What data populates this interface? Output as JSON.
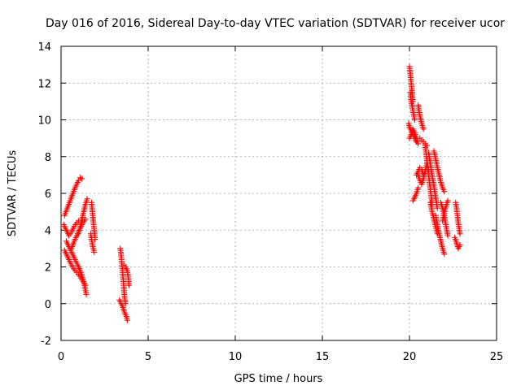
{
  "chart_data": {
    "type": "scatter",
    "title": "Day 016 of 2016, Sidereal Day-to-day VTEC variation (SDTVAR) for receiver ucor",
    "xlabel": "GPS time / hours",
    "ylabel": "SDTVAR / TECUs",
    "xlim": [
      0,
      25
    ],
    "ylim": [
      -2,
      14
    ],
    "xticks": [
      0,
      5,
      10,
      15,
      20,
      25
    ],
    "yticks": [
      -2,
      0,
      2,
      4,
      6,
      8,
      10,
      12,
      14
    ],
    "xtick_labels": [
      "0",
      "5",
      "10",
      "15",
      "20",
      "25"
    ],
    "ytick_labels": [
      "-2",
      "0",
      "2",
      "4",
      "6",
      "8",
      "10",
      "12",
      "14"
    ],
    "grid": true,
    "marker": "+",
    "marker_color": "#ff0000",
    "series": [
      {
        "name": "SDTVAR",
        "segments": [
          {
            "x": [
              0.2,
              0.4,
              0.6,
              0.8,
              1.0,
              1.1,
              1.2
            ],
            "y": [
              4.8,
              5.3,
              5.8,
              6.3,
              6.7,
              6.85,
              6.8
            ]
          },
          {
            "x": [
              0.15,
              0.3,
              0.45,
              0.6,
              0.75,
              0.9,
              1.0
            ],
            "y": [
              4.3,
              4.0,
              3.7,
              3.9,
              4.2,
              4.4,
              4.5
            ]
          },
          {
            "x": [
              0.2,
              0.4,
              0.6,
              0.8,
              1.0,
              1.2,
              1.4
            ],
            "y": [
              2.9,
              2.5,
              2.1,
              1.8,
              1.6,
              1.3,
              1.0
            ]
          },
          {
            "x": [
              0.3,
              0.5,
              0.7,
              0.9,
              1.1,
              1.3,
              1.45
            ],
            "y": [
              3.4,
              3.0,
              2.6,
              2.2,
              1.8,
              1.2,
              0.5
            ]
          },
          {
            "x": [
              0.6,
              0.8,
              1.0,
              1.2,
              1.4
            ],
            "y": [
              3.0,
              3.5,
              3.9,
              4.3,
              4.6
            ]
          },
          {
            "x": [
              1.0,
              1.1,
              1.2,
              1.3,
              1.4,
              1.5
            ],
            "y": [
              3.8,
              4.2,
              4.6,
              5.0,
              5.4,
              5.7
            ]
          },
          {
            "x": [
              1.75,
              1.8,
              1.85,
              1.9,
              1.95
            ],
            "y": [
              5.5,
              5.0,
              4.5,
              4.0,
              3.5
            ]
          },
          {
            "x": [
              1.7,
              1.8,
              1.9
            ],
            "y": [
              3.8,
              3.2,
              2.8
            ]
          },
          {
            "x": [
              3.4,
              3.45,
              3.5,
              3.55,
              3.6,
              3.65,
              3.7
            ],
            "y": [
              3.0,
              2.6,
              2.1,
              1.5,
              0.9,
              0.3,
              0.0
            ]
          },
          {
            "x": [
              3.35,
              3.45,
              3.55,
              3.65,
              3.75,
              3.8
            ],
            "y": [
              0.2,
              0.0,
              -0.2,
              -0.5,
              -0.7,
              -0.9
            ]
          },
          {
            "x": [
              3.6,
              3.7,
              3.8,
              3.85,
              3.9
            ],
            "y": [
              2.1,
              2.0,
              1.8,
              1.5,
              1.0
            ]
          },
          {
            "x": [
              20.0,
              20.05,
              20.1,
              20.15,
              20.2
            ],
            "y": [
              12.9,
              12.5,
              12.0,
              11.5,
              11.0
            ]
          },
          {
            "x": [
              20.05,
              20.1,
              20.2,
              20.3
            ],
            "y": [
              11.5,
              11.0,
              10.5,
              10.0
            ]
          },
          {
            "x": [
              19.95,
              20.0,
              20.1,
              20.2,
              20.3,
              20.4
            ],
            "y": [
              9.8,
              9.6,
              9.4,
              9.2,
              9.0,
              8.8
            ]
          },
          {
            "x": [
              20.0,
              20.1,
              20.2,
              20.3,
              20.4,
              20.5
            ],
            "y": [
              9.0,
              9.2,
              9.5,
              9.3,
              9.0,
              8.7
            ]
          },
          {
            "x": [
              20.5,
              20.55,
              20.6,
              20.7,
              20.8
            ],
            "y": [
              10.8,
              10.5,
              10.2,
              9.8,
              9.5
            ]
          },
          {
            "x": [
              20.6,
              20.7,
              20.8,
              20.9,
              21.0
            ],
            "y": [
              9.0,
              8.9,
              8.8,
              8.7,
              8.6
            ]
          },
          {
            "x": [
              20.4,
              20.5,
              20.6,
              20.7,
              20.8
            ],
            "y": [
              7.0,
              7.2,
              7.4,
              7.3,
              7.0
            ]
          },
          {
            "x": [
              20.5,
              20.6,
              20.7,
              20.8,
              20.9,
              21.0,
              21.1
            ],
            "y": [
              7.0,
              6.7,
              6.5,
              6.8,
              7.2,
              7.6,
              7.2
            ]
          },
          {
            "x": [
              20.2,
              20.3,
              20.4,
              20.5
            ],
            "y": [
              5.6,
              5.8,
              6.0,
              6.3
            ]
          },
          {
            "x": [
              20.9,
              21.0,
              21.1,
              21.2,
              21.3
            ],
            "y": [
              8.6,
              7.8,
              7.0,
              6.2,
              5.4
            ]
          },
          {
            "x": [
              21.1,
              21.2,
              21.3,
              21.4,
              21.5,
              21.6
            ],
            "y": [
              8.2,
              7.6,
              7.0,
              6.4,
              5.8,
              5.2
            ]
          },
          {
            "x": [
              21.4,
              21.5,
              21.6,
              21.7,
              21.8,
              21.9,
              22.0
            ],
            "y": [
              8.3,
              7.9,
              7.4,
              7.0,
              6.6,
              6.3,
              6.1
            ]
          },
          {
            "x": [
              21.2,
              21.3,
              21.4,
              21.5,
              21.6
            ],
            "y": [
              5.5,
              5.0,
              4.6,
              4.2,
              3.8
            ]
          },
          {
            "x": [
              21.5,
              21.6,
              21.7,
              21.8,
              21.9,
              22.0
            ],
            "y": [
              4.8,
              4.3,
              3.8,
              3.4,
              3.0,
              2.7
            ]
          },
          {
            "x": [
              21.8,
              21.9,
              22.0,
              22.1,
              22.2
            ],
            "y": [
              5.5,
              5.2,
              4.8,
              4.2,
              3.7
            ]
          },
          {
            "x": [
              21.9,
              22.0,
              22.1,
              22.2
            ],
            "y": [
              4.5,
              5.0,
              5.3,
              5.6
            ]
          },
          {
            "x": [
              22.65,
              22.7,
              22.75,
              22.8,
              22.85,
              22.9
            ],
            "y": [
              5.5,
              5.2,
              4.8,
              4.4,
              4.1,
              3.8
            ]
          },
          {
            "x": [
              22.6,
              22.7,
              22.8,
              22.9
            ],
            "y": [
              3.6,
              3.3,
              3.0,
              3.2
            ]
          }
        ]
      }
    ]
  }
}
